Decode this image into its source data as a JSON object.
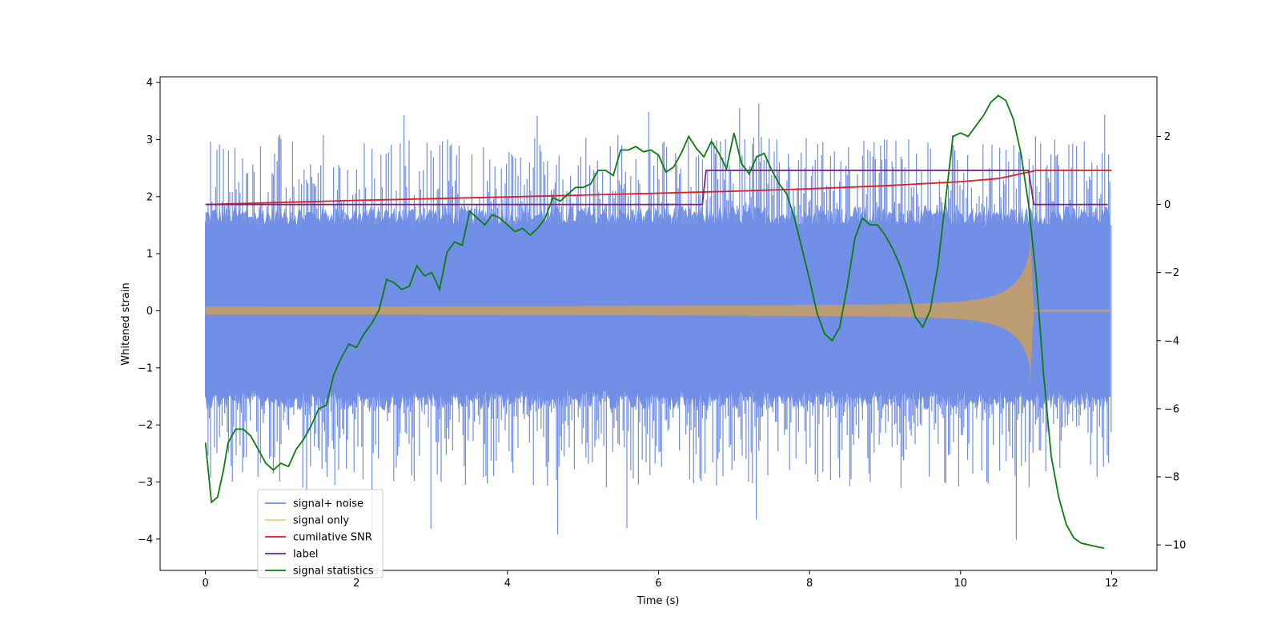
{
  "chart_data": {
    "type": "line",
    "xlabel": "Time (s)",
    "ylabel": "Whitened strain",
    "xlim": [
      -0.6,
      12.6
    ],
    "ylim": [
      -4.55,
      4.1
    ],
    "y2lim": [
      -10.75,
      3.75
    ],
    "x_ticks": [
      "0",
      "2",
      "4",
      "6",
      "8",
      "10",
      "12"
    ],
    "x_tick_values": [
      0,
      2,
      4,
      6,
      8,
      10,
      12
    ],
    "y_ticks": [
      "−4",
      "−3",
      "−2",
      "−1",
      "0",
      "1",
      "2",
      "3",
      "4"
    ],
    "y_tick_values": [
      -4,
      -3,
      -2,
      -1,
      0,
      1,
      2,
      3,
      4
    ],
    "y2_ticks": [
      "−10",
      "−8",
      "−6",
      "−4",
      "−2",
      "0",
      "2"
    ],
    "y2_tick_values": [
      -10,
      -8,
      -6,
      -4,
      -2,
      0,
      2
    ],
    "legend_position": "lower-left",
    "series": [
      {
        "name": "signal+ noise",
        "color": "#6f8de6",
        "axis": "left",
        "description_values": {
          "x_start": 0,
          "x_end": 12,
          "band_min": -1.5,
          "band_max": 1.6,
          "spike_max": 3.7,
          "spike_min": -4.15
        }
      },
      {
        "name": "signal only",
        "color": "#ffbf60",
        "axis": "left",
        "chirp": {
          "x_start": 0,
          "x_merge": 10.92,
          "x_end": 12,
          "amp_start": 0.07,
          "amp_peak": 1.4
        }
      },
      {
        "name": "cumilative SNR",
        "color": "#e41a1c",
        "axis": "right",
        "x": [
          0,
          2,
          4,
          6,
          7,
          8,
          9,
          10,
          10.5,
          10.9,
          11,
          12
        ],
        "y": [
          0.0,
          0.12,
          0.22,
          0.33,
          0.39,
          0.46,
          0.55,
          0.67,
          0.76,
          0.95,
          1.0,
          1.0
        ]
      },
      {
        "name": "label",
        "color": "#7a1f86",
        "axis": "right",
        "x": [
          0,
          6.58,
          6.63,
          10.9,
          10.97,
          11.95
        ],
        "y": [
          0,
          0,
          1,
          1,
          0,
          0
        ]
      },
      {
        "name": "signal statistics",
        "color": "#0b7d0b",
        "axis": "right",
        "x": [
          0,
          0.08,
          0.16,
          0.24,
          0.3,
          0.4,
          0.5,
          0.6,
          0.7,
          0.8,
          0.9,
          1.0,
          1.1,
          1.2,
          1.3,
          1.4,
          1.5,
          1.6,
          1.7,
          1.8,
          1.9,
          2.0,
          2.1,
          2.2,
          2.3,
          2.4,
          2.5,
          2.6,
          2.7,
          2.8,
          2.9,
          3.0,
          3.1,
          3.2,
          3.3,
          3.4,
          3.5,
          3.6,
          3.7,
          3.8,
          3.9,
          4.0,
          4.1,
          4.2,
          4.3,
          4.4,
          4.5,
          4.6,
          4.7,
          4.8,
          4.9,
          5.0,
          5.1,
          5.2,
          5.3,
          5.4,
          5.5,
          5.6,
          5.7,
          5.8,
          5.9,
          6.0,
          6.1,
          6.2,
          6.3,
          6.4,
          6.5,
          6.6,
          6.7,
          6.8,
          6.9,
          7.0,
          7.1,
          7.2,
          7.3,
          7.4,
          7.5,
          7.6,
          7.7,
          7.8,
          7.9,
          8.0,
          8.1,
          8.2,
          8.3,
          8.4,
          8.5,
          8.6,
          8.7,
          8.8,
          8.9,
          9.0,
          9.1,
          9.2,
          9.3,
          9.4,
          9.5,
          9.6,
          9.7,
          9.8,
          9.9,
          10.0,
          10.1,
          10.2,
          10.3,
          10.4,
          10.5,
          10.6,
          10.7,
          10.8,
          10.9,
          11.0,
          11.1,
          11.2,
          11.3,
          11.4,
          11.5,
          11.6,
          11.7,
          11.8,
          11.9
        ],
        "y": [
          -7.0,
          -8.75,
          -8.6,
          -7.8,
          -7.0,
          -6.6,
          -6.6,
          -6.8,
          -7.2,
          -7.6,
          -7.8,
          -7.6,
          -7.7,
          -7.2,
          -6.9,
          -6.5,
          -6.0,
          -5.9,
          -5.0,
          -4.5,
          -4.1,
          -4.2,
          -3.8,
          -3.5,
          -3.1,
          -2.2,
          -2.3,
          -2.5,
          -2.4,
          -1.8,
          -2.1,
          -2.0,
          -2.5,
          -1.4,
          -1.1,
          -1.2,
          -0.2,
          -0.4,
          -0.6,
          -0.3,
          -0.4,
          -0.6,
          -0.8,
          -0.7,
          -0.9,
          -0.7,
          -0.4,
          0.2,
          0.1,
          0.3,
          0.5,
          0.5,
          0.6,
          1.0,
          1.0,
          0.85,
          1.6,
          1.6,
          1.7,
          1.55,
          1.6,
          1.45,
          0.95,
          1.1,
          1.5,
          2.0,
          1.65,
          1.4,
          1.85,
          1.5,
          1.05,
          2.1,
          1.2,
          0.9,
          1.4,
          1.5,
          1.0,
          0.6,
          0.3,
          -0.4,
          -1.3,
          -2.2,
          -3.2,
          -3.8,
          -4.0,
          -3.6,
          -2.4,
          -1.0,
          -0.4,
          -0.6,
          -0.6,
          -0.9,
          -1.3,
          -1.8,
          -2.5,
          -3.3,
          -3.6,
          -3.1,
          -1.8,
          0.1,
          2.0,
          2.1,
          2.0,
          2.3,
          2.6,
          3.0,
          3.2,
          3.05,
          2.5,
          1.5,
          0.0,
          -2.1,
          -5.0,
          -7.4,
          -8.6,
          -9.4,
          -9.8,
          -9.95,
          -10.0,
          -10.05,
          -10.1
        ]
      }
    ]
  }
}
